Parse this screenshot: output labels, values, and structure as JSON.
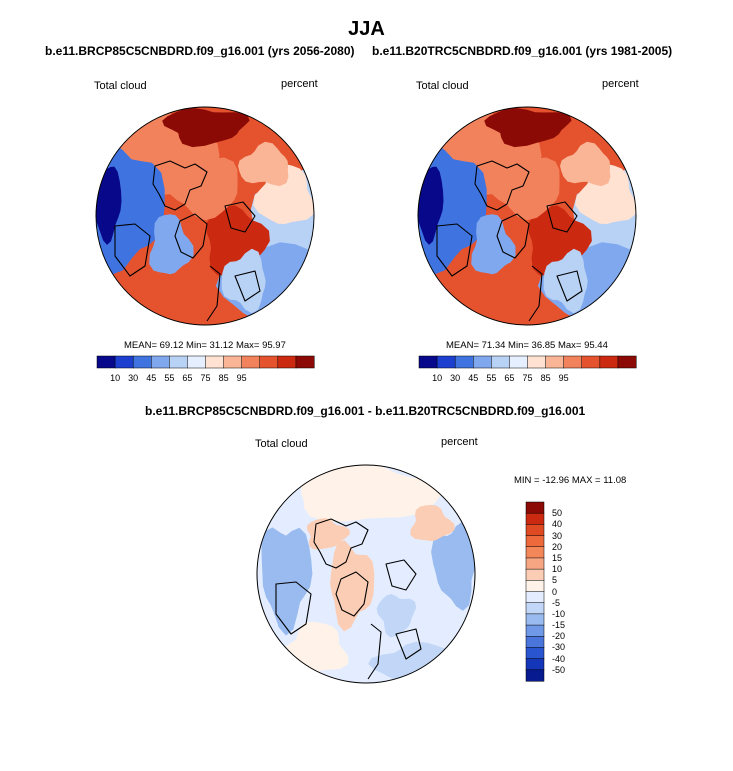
{
  "figure": {
    "title": "JJA"
  },
  "panels": [
    {
      "id": "future",
      "title": "b.e11.BRCP85C5CNBDRD.f09_g16.001 (yrs 2056-2080)",
      "variable": "Total cloud",
      "units": "percent",
      "stats": "MEAN=  69.12  Min=  31.12  Max=  95.97",
      "colorbar_ticks": [
        "10",
        "30",
        "45",
        "55",
        "65",
        "75",
        "85",
        "95"
      ]
    },
    {
      "id": "historical",
      "title": "b.e11.B20TRC5CNBDRD.f09_g16.001 (yrs 1981-2005)",
      "variable": "Total cloud",
      "units": "percent",
      "stats": "MEAN=  71.34  Min=  36.85  Max=  95.44",
      "colorbar_ticks": [
        "10",
        "30",
        "45",
        "55",
        "65",
        "75",
        "85",
        "95"
      ]
    }
  ],
  "difference": {
    "title": "b.e11.BRCP85C5CNBDRD.f09_g16.001 - b.e11.B20TRC5CNBDRD.f09_g16.001",
    "variable": "Total cloud",
    "units": "percent",
    "stats": "MIN = -12.96 MAX =  11.08",
    "colorbar_ticks": [
      "50",
      "40",
      "30",
      "20",
      "15",
      "10",
      "5",
      "0",
      "-5",
      "-10",
      "-15",
      "-20",
      "-30",
      "-40",
      "-50"
    ]
  },
  "colors": {
    "abs_scale": [
      "#08088a",
      "#1c3fd0",
      "#3f74e0",
      "#80a8ef",
      "#b8d2f5",
      "#e6efff",
      "#ffe2d2",
      "#f9b596",
      "#f2825c",
      "#e5522e",
      "#cc2a10",
      "#8b0a05"
    ],
    "diff_scale": [
      "#8b0a05",
      "#cc2a10",
      "#e04a22",
      "#ee6a3c",
      "#f3875a",
      "#f6a682",
      "#fbcdb4",
      "#fff2e8",
      "#e3edff",
      "#c2d6f7",
      "#99bbf0",
      "#6f98e6",
      "#4a76dc",
      "#2a55d0",
      "#1436b8",
      "#071a8f"
    ]
  }
}
